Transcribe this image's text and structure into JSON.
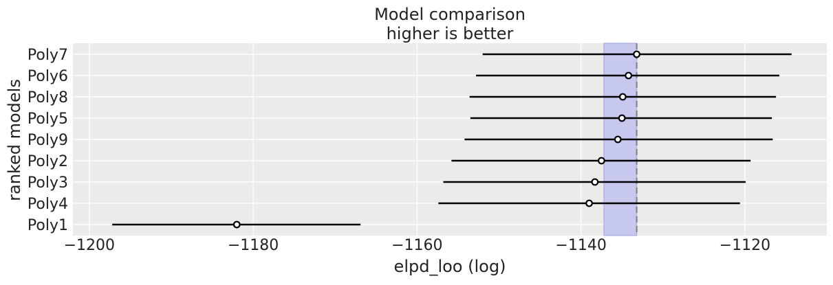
{
  "chart_data": {
    "type": "scatter",
    "title_line1": "Model comparison",
    "title_line2": "higher is better",
    "xlabel": "elpd_loo (log)",
    "ylabel": "ranked models",
    "xlim": [
      -1202,
      -1110
    ],
    "xticks": [
      -1200,
      -1180,
      -1160,
      -1140,
      -1120
    ],
    "xtick_labels": [
      "−1200",
      "−1180",
      "−1160",
      "−1140",
      "−1120"
    ],
    "grid": true,
    "best_model_elpd": -1133.2,
    "best_model_se_band": [
      -1137.2,
      -1133.2
    ],
    "models": [
      {
        "name": "Poly7",
        "elpd": -1133.2,
        "lower": -1152.0,
        "upper": -1114.3
      },
      {
        "name": "Poly6",
        "elpd": -1134.2,
        "lower": -1152.8,
        "upper": -1115.8
      },
      {
        "name": "Poly8",
        "elpd": -1134.9,
        "lower": -1153.6,
        "upper": -1116.2
      },
      {
        "name": "Poly5",
        "elpd": -1135.0,
        "lower": -1153.5,
        "upper": -1116.7
      },
      {
        "name": "Poly9",
        "elpd": -1135.5,
        "lower": -1154.2,
        "upper": -1116.6
      },
      {
        "name": "Poly2",
        "elpd": -1137.5,
        "lower": -1155.8,
        "upper": -1119.3
      },
      {
        "name": "Poly3",
        "elpd": -1138.3,
        "lower": -1156.8,
        "upper": -1119.9
      },
      {
        "name": "Poly4",
        "elpd": -1139.0,
        "lower": -1157.4,
        "upper": -1120.6
      },
      {
        "name": "Poly1",
        "elpd": -1182.0,
        "lower": -1197.2,
        "upper": -1166.9
      }
    ],
    "colors": {
      "background": "#ebebeb",
      "grid": "#ffffff",
      "band": "#c4c6ee",
      "band_edge": "#9ea2e0",
      "marker_edge": "#000000",
      "marker_face": "#ffffff",
      "line": "#000000",
      "ref_line": "#8a8a93"
    }
  }
}
